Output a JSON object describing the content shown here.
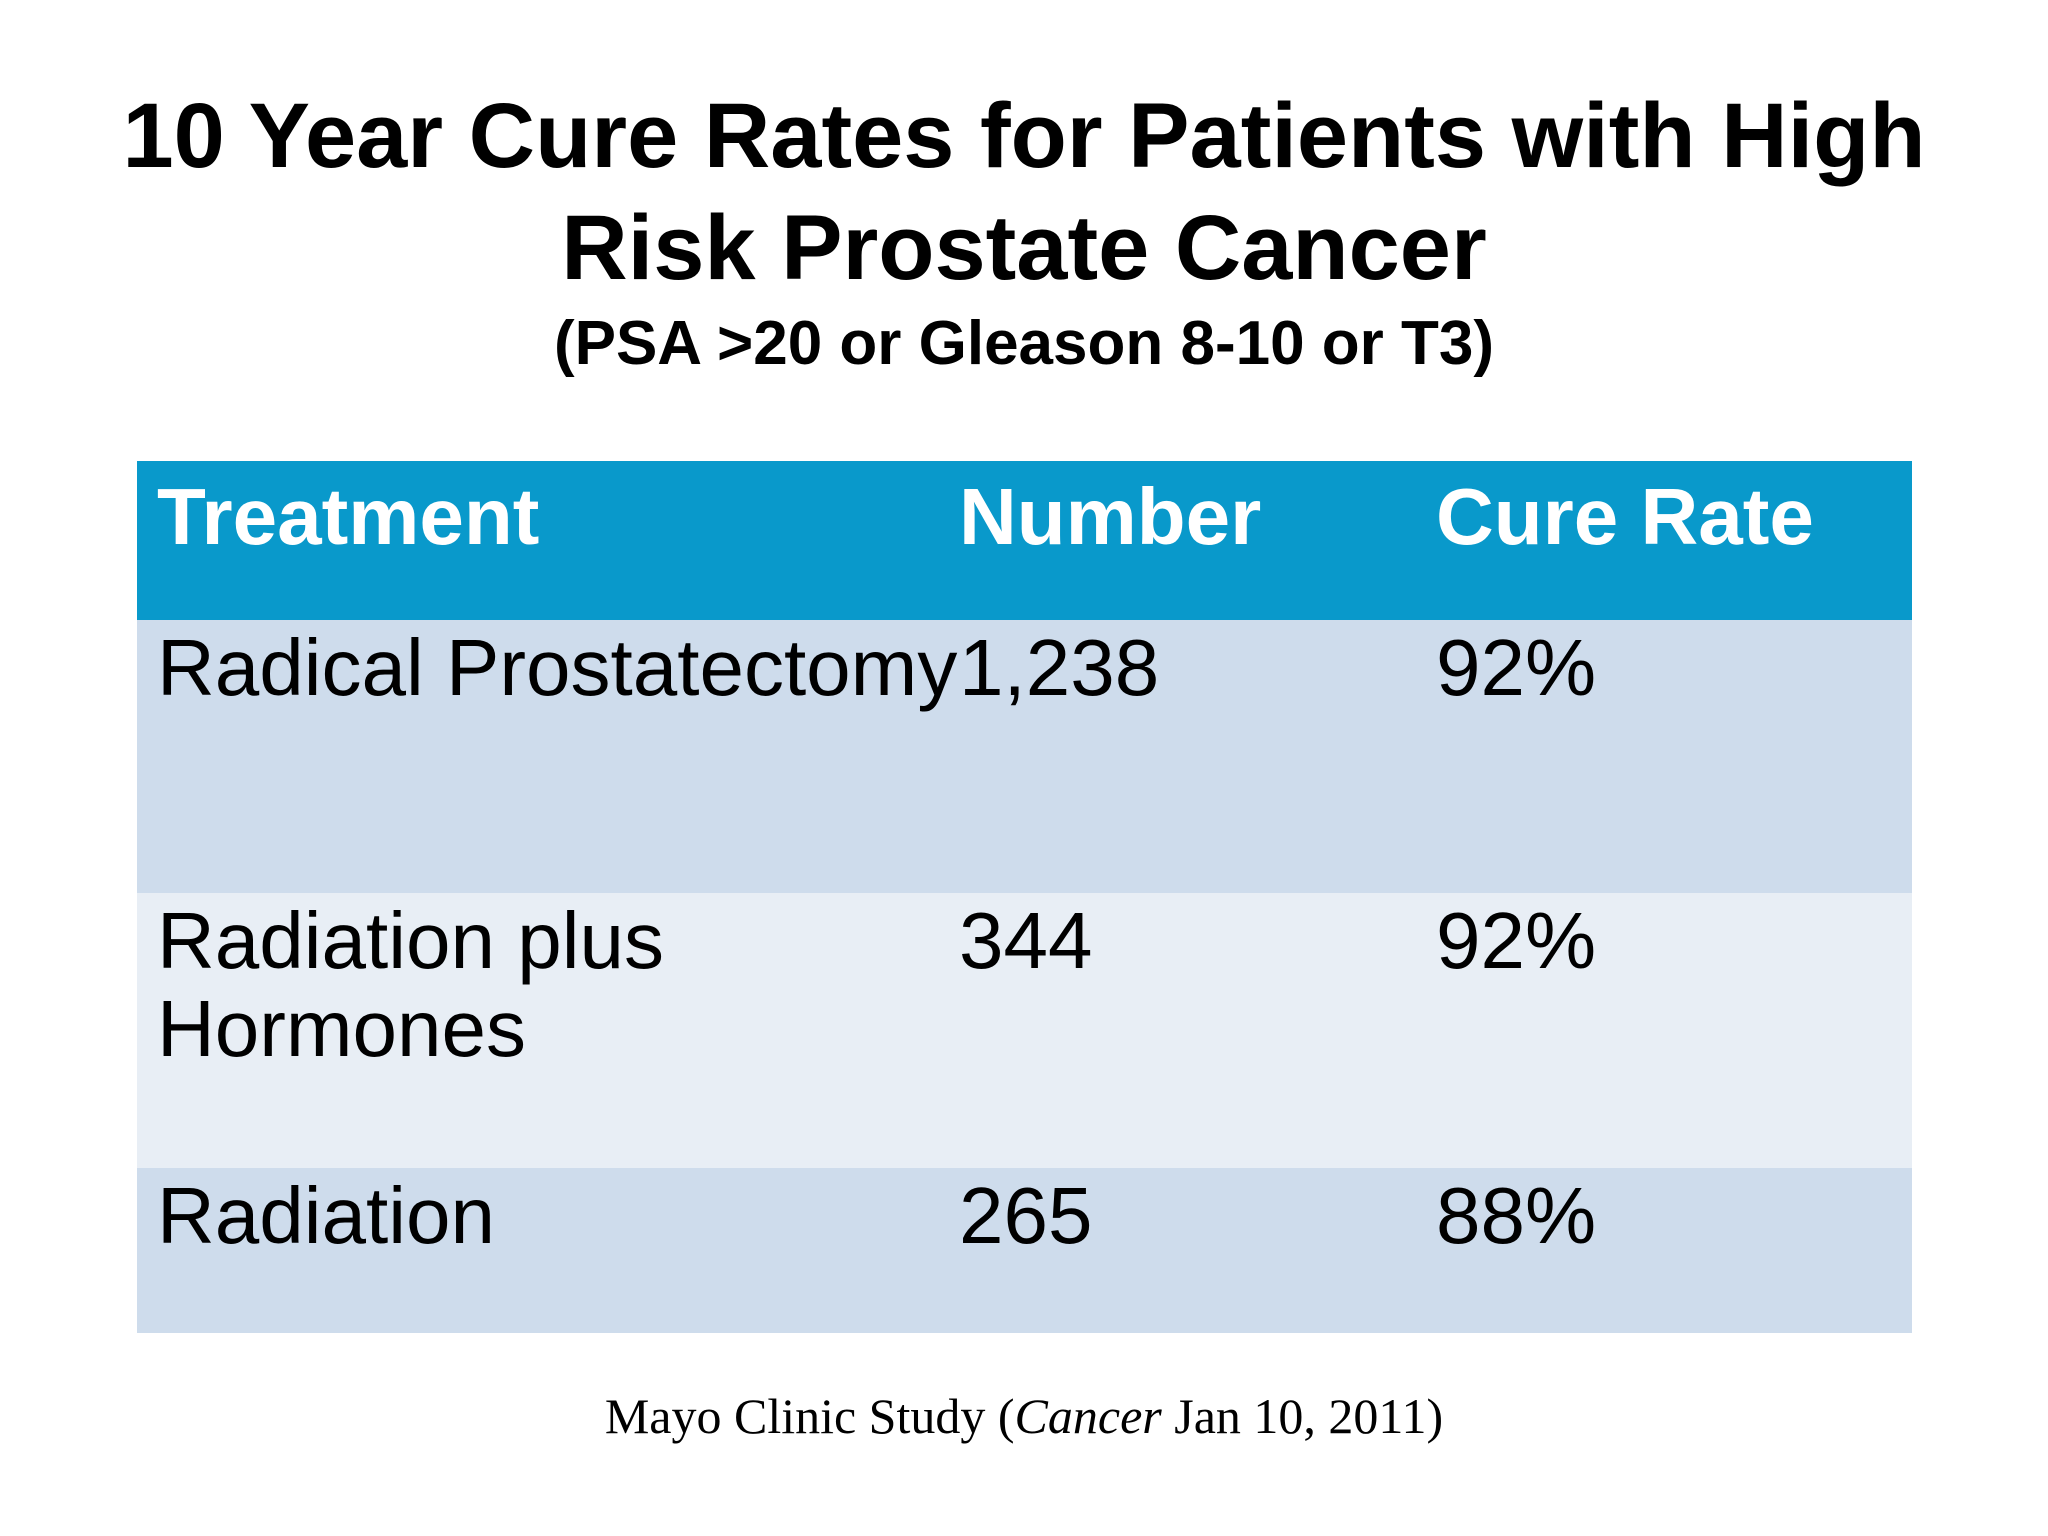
{
  "slide": {
    "title_line1": "10 Year Cure Rates for Patients with High",
    "title_line2": "Risk Prostate Cancer",
    "subtitle": "(PSA >20 or Gleason 8-10 or T3)"
  },
  "table": {
    "columns": [
      "Treatment",
      "Number",
      "Cure Rate"
    ],
    "rows": [
      {
        "treatment": "Radical Prostatectomy",
        "number": "1,238",
        "cure_rate": "92%"
      },
      {
        "treatment": "Radiation plus Hormones",
        "number": "344",
        "cure_rate": "92%"
      },
      {
        "treatment": "Radiation",
        "number": "265",
        "cure_rate": "88%"
      }
    ]
  },
  "footer": {
    "prefix": "Mayo Clinic Study (",
    "journal": "Cancer",
    "suffix": " Jan 10, 2011)"
  },
  "colors": {
    "header_bg": "#0999CB",
    "header_text": "#FFFFFF",
    "row_odd_bg": "#CEDCEC",
    "row_even_bg": "#E8EEF5",
    "text": "#000000"
  }
}
